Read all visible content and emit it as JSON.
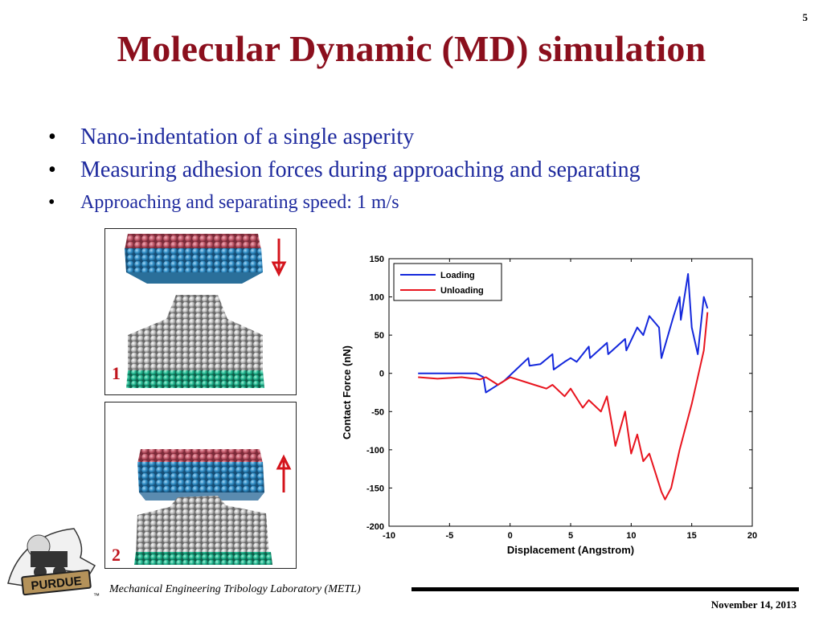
{
  "slide_number": "5",
  "title": "Molecular Dynamic (MD) simulation",
  "bullets": [
    "Nano-indentation of a single asperity",
    "Measuring adhesion forces during approaching and separating",
    "Approaching and separating speed: 1 m/s"
  ],
  "bullet_glyph": "•",
  "panels": [
    {
      "label": "1",
      "arrow": "down-arrow"
    },
    {
      "label": "2",
      "arrow": "up-arrow"
    }
  ],
  "footer": {
    "lab": "Mechanical Engineering Tribology Laboratory (METL)",
    "date": "November 14, 2013"
  },
  "logo_text": "PURDUE",
  "logo_mark": "™",
  "colors": {
    "title": "#8b0f1d",
    "bullets": "#1e2a9e",
    "loading": "#1428dc",
    "unloading": "#e8141e",
    "arrow": "#d4141c"
  },
  "chart_data": {
    "type": "line",
    "xlabel": "Displacement (Angstrom)",
    "ylabel": "Contact Force (nN)",
    "xlim": [
      -10,
      20
    ],
    "ylim": [
      -200,
      150
    ],
    "xticks": [
      -10,
      -5,
      0,
      5,
      10,
      15,
      20
    ],
    "yticks": [
      150,
      100,
      50,
      0,
      -50,
      -100,
      -150,
      -200
    ],
    "legend_position": "top-left",
    "series": [
      {
        "name": "Loading",
        "color": "#1428dc",
        "x": [
          -7.6,
          -2.8,
          -2.2,
          -2.0,
          -1.5,
          -0.5,
          0.5,
          1.5,
          1.6,
          2.5,
          3.5,
          3.6,
          4.5,
          5.0,
          5.5,
          6.5,
          6.6,
          8.0,
          8.1,
          9.5,
          9.6,
          10.5,
          11.0,
          11.5,
          12.3,
          12.5,
          13.5,
          14.0,
          14.1,
          14.7,
          15.0,
          15.5,
          16.0,
          16.3
        ],
        "y": [
          0,
          0,
          -5,
          -25,
          -20,
          -10,
          5,
          20,
          10,
          12,
          25,
          5,
          15,
          20,
          15,
          35,
          20,
          40,
          25,
          45,
          30,
          60,
          50,
          75,
          60,
          20,
          75,
          100,
          70,
          130,
          60,
          25,
          100,
          85
        ]
      },
      {
        "name": "Unloading",
        "color": "#e8141e",
        "x": [
          -7.6,
          -6.0,
          -4.0,
          -2.5,
          -2.0,
          -1.0,
          0.0,
          2.0,
          3.0,
          3.5,
          4.5,
          5.0,
          6.0,
          6.5,
          7.5,
          8.0,
          8.5,
          8.7,
          9.5,
          10.0,
          10.5,
          11.0,
          11.5,
          12.0,
          12.5,
          12.8,
          13.3,
          14.0,
          15.0,
          16.0,
          16.3
        ],
        "y": [
          -5,
          -7,
          -5,
          -8,
          -5,
          -15,
          -5,
          -15,
          -20,
          -15,
          -30,
          -20,
          -45,
          -35,
          -50,
          -30,
          -75,
          -95,
          -50,
          -105,
          -80,
          -115,
          -105,
          -130,
          -155,
          -165,
          -150,
          -100,
          -40,
          30,
          80
        ]
      }
    ]
  }
}
